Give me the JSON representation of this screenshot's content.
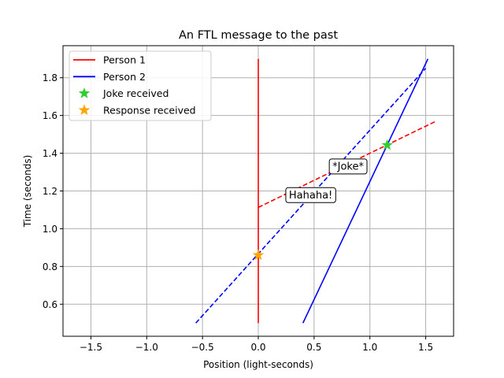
{
  "chart_data": {
    "type": "line",
    "title": "An FTL message to the past",
    "xlabel": "Position (light-seconds)",
    "ylabel": "Time (seconds)",
    "xlim": [
      -1.75,
      1.75
    ],
    "ylim": [
      0.43,
      1.97
    ],
    "xticks": [
      -1.5,
      -1.0,
      -0.5,
      0.0,
      0.5,
      1.0,
      1.5
    ],
    "xtick_labels": [
      "−1.5",
      "−1.0",
      "−0.5",
      "0.0",
      "0.5",
      "1.0",
      "1.5"
    ],
    "yticks": [
      0.6,
      0.8,
      1.0,
      1.2,
      1.4,
      1.6,
      1.8
    ],
    "ytick_labels": [
      "0.6",
      "0.8",
      "1.0",
      "1.2",
      "1.4",
      "1.6",
      "1.8"
    ],
    "grid": true,
    "legend_position": "top-left",
    "legend": [
      {
        "label": "Person 1",
        "kind": "line",
        "color": "#ff0000"
      },
      {
        "label": "Person 2",
        "kind": "line",
        "color": "#0000ff"
      },
      {
        "label": "Joke received",
        "kind": "star",
        "color": "#33cc33"
      },
      {
        "label": "Response received",
        "kind": "star",
        "color": "#ffa500"
      }
    ],
    "series": [
      {
        "name": "Person 1",
        "style": "solid",
        "color": "#ff0000",
        "points": [
          [
            0.0,
            0.5
          ],
          [
            0.0,
            1.9
          ]
        ]
      },
      {
        "name": "Person 2",
        "style": "solid",
        "color": "#0000ff",
        "points": [
          [
            0.4,
            0.5
          ],
          [
            1.52,
            1.9
          ]
        ]
      },
      {
        "style": "dashed",
        "color": "#ff0000",
        "points": [
          [
            0.0,
            1.113
          ],
          [
            1.6,
            1.572
          ]
        ]
      },
      {
        "style": "dashed",
        "color": "#0000ff",
        "points": [
          [
            -0.56,
            0.5
          ],
          [
            1.5,
            1.85
          ]
        ]
      }
    ],
    "markers": [
      {
        "name": "Joke received",
        "x": 1.155,
        "y": 1.443,
        "color": "#33cc33"
      },
      {
        "name": "Response received",
        "x": 0.0,
        "y": 0.86,
        "color": "#ffa500"
      }
    ],
    "annotations": [
      {
        "text": "*Joke*",
        "x": 0.805,
        "y": 1.332
      },
      {
        "text": "Hahaha!",
        "x": 0.47,
        "y": 1.18
      }
    ]
  }
}
